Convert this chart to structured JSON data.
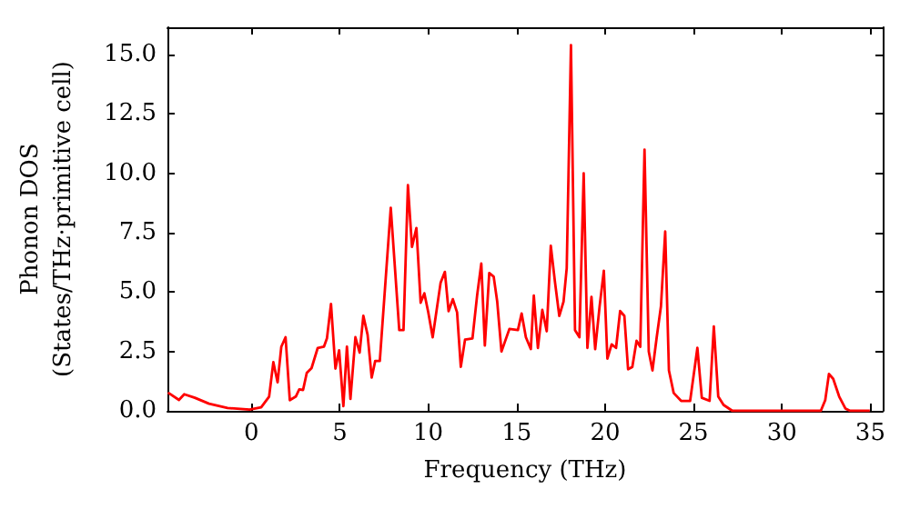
{
  "chart_data": {
    "type": "line",
    "xlabel": "Frequency (THz)",
    "ylabel": "Phonon DOS\n(States/THz·primitive cell)",
    "x": [
      -4.72,
      -4.1,
      -3.8,
      -3.2,
      -2.4,
      -1.35,
      -0.1,
      0.55,
      1.0,
      1.24,
      1.48,
      1.69,
      1.93,
      2.17,
      2.51,
      2.7,
      2.92,
      3.13,
      3.4,
      3.75,
      4.1,
      4.27,
      4.5,
      4.75,
      4.96,
      5.2,
      5.4,
      5.6,
      5.88,
      6.12,
      6.33,
      6.57,
      6.8,
      7.0,
      7.26,
      7.88,
      8.36,
      8.6,
      8.85,
      9.08,
      9.33,
      9.57,
      9.78,
      10.0,
      10.25,
      10.7,
      10.94,
      11.15,
      11.39,
      11.63,
      11.84,
      12.08,
      12.5,
      12.77,
      13.0,
      13.2,
      13.45,
      13.7,
      13.9,
      14.14,
      14.59,
      15.07,
      15.28,
      15.52,
      15.8,
      15.97,
      16.2,
      16.45,
      16.7,
      16.93,
      17.17,
      17.41,
      17.65,
      17.83,
      18.07,
      18.3,
      18.55,
      18.79,
      19.0,
      19.23,
      19.44,
      19.69,
      19.93,
      20.13,
      20.37,
      20.62,
      20.85,
      21.09,
      21.3,
      21.54,
      21.78,
      21.99,
      22.23,
      22.47,
      22.68,
      22.92,
      23.16,
      23.4,
      23.61,
      23.88,
      24.3,
      24.81,
      25.22,
      25.47,
      25.91,
      26.15,
      26.4,
      26.7,
      27.2,
      32.2,
      32.45,
      32.66,
      32.9,
      33.24,
      33.59,
      33.86,
      34.97
    ],
    "series": [
      {
        "color": "#ff0000",
        "values": [
          0.77,
          0.46,
          0.7,
          0.55,
          0.3,
          0.12,
          0.05,
          0.15,
          0.6,
          2.05,
          1.2,
          2.7,
          3.1,
          0.45,
          0.6,
          0.9,
          0.88,
          1.6,
          1.8,
          2.65,
          2.7,
          3.05,
          4.5,
          1.78,
          2.55,
          0.2,
          2.7,
          0.5,
          3.1,
          2.45,
          4.0,
          3.2,
          1.4,
          2.1,
          2.1,
          8.55,
          3.4,
          3.4,
          9.5,
          6.9,
          7.7,
          4.55,
          4.95,
          4.15,
          3.1,
          5.4,
          5.85,
          4.2,
          4.7,
          4.15,
          1.85,
          3.0,
          3.05,
          4.9,
          6.2,
          2.75,
          5.8,
          5.65,
          4.6,
          2.5,
          3.45,
          3.4,
          4.1,
          3.1,
          2.6,
          4.85,
          2.65,
          4.25,
          3.35,
          6.95,
          5.4,
          4.0,
          4.6,
          6.0,
          15.4,
          3.4,
          3.1,
          10.0,
          2.65,
          4.8,
          2.6,
          4.4,
          5.9,
          2.2,
          2.8,
          2.65,
          4.2,
          4.0,
          1.75,
          1.85,
          2.95,
          2.7,
          11.0,
          2.5,
          1.7,
          3.1,
          4.4,
          7.55,
          1.7,
          0.75,
          0.42,
          0.42,
          2.65,
          0.55,
          0.42,
          3.55,
          0.6,
          0.25,
          0,
          0,
          0.45,
          1.55,
          1.35,
          0.6,
          0.1,
          0,
          0
        ]
      }
    ],
    "xlim": [
      -4.75,
      35.7
    ],
    "ylim": [
      0,
      16.15
    ],
    "xticks": [
      0,
      5,
      10,
      15,
      20,
      25,
      30,
      35
    ],
    "yticks": [
      {
        "value": 0,
        "label": "0.0"
      },
      {
        "value": 2.5,
        "label": "2.5"
      },
      {
        "value": 5,
        "label": "5.0"
      },
      {
        "value": 7.5,
        "label": "7.5"
      },
      {
        "value": 10,
        "label": "10.0"
      },
      {
        "value": 12.5,
        "label": "12.5"
      },
      {
        "value": 15,
        "label": "15.0"
      }
    ],
    "grid": false
  }
}
